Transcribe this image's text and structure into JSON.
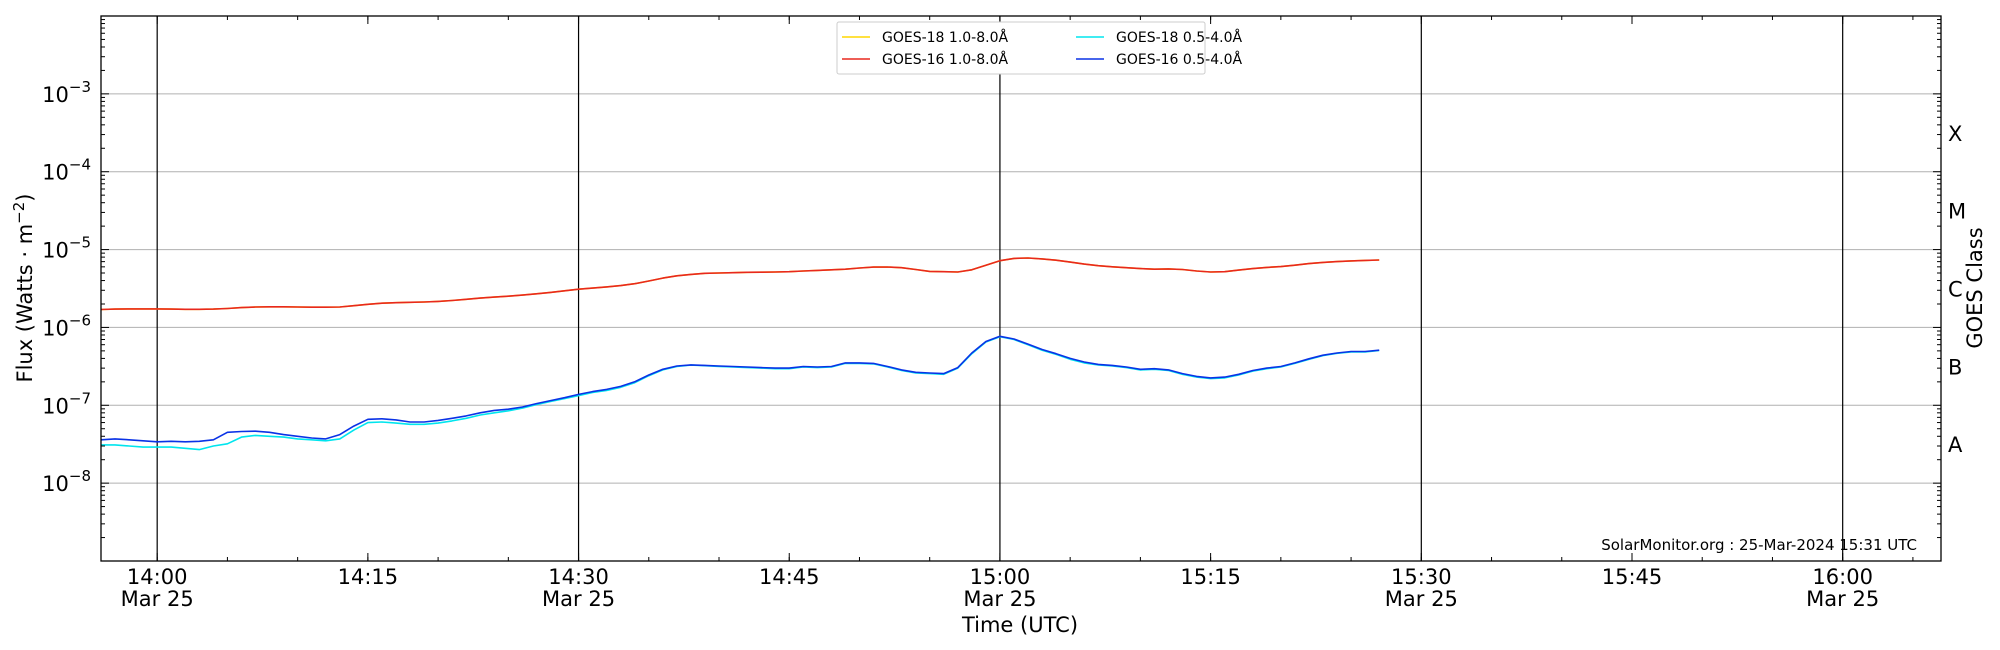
{
  "chart_data": {
    "type": "line",
    "ylabel": "Flux (Watts · m⁻²)",
    "xlabel": "Time (UTC)",
    "right_label": "GOES Class",
    "credit": "SolarMonitor.org : 25-Mar-2024 15:31 UTC",
    "yscale": "log",
    "xlim": [
      "13:56",
      "16:07"
    ],
    "ylim": [
      1e-09,
      0.01
    ],
    "grid": "horizontal",
    "y_ticks": [
      {
        "value": 1e-08,
        "mant": "10",
        "exp": "−8"
      },
      {
        "value": 1e-07,
        "mant": "10",
        "exp": "−7"
      },
      {
        "value": 1e-06,
        "mant": "10",
        "exp": "−6"
      },
      {
        "value": 1e-05,
        "mant": "10",
        "exp": "−5"
      },
      {
        "value": 0.0001,
        "mant": "10",
        "exp": "−4"
      },
      {
        "value": 0.001,
        "mant": "10",
        "exp": "−3"
      }
    ],
    "x_ticks": [
      {
        "time": "14:00",
        "label": "14:00",
        "date": "Mar 25",
        "vline": true
      },
      {
        "time": "14:15",
        "label": "14:15",
        "date": "",
        "vline": false
      },
      {
        "time": "14:30",
        "label": "14:30",
        "date": "Mar 25",
        "vline": true
      },
      {
        "time": "14:45",
        "label": "14:45",
        "date": "",
        "vline": false
      },
      {
        "time": "15:00",
        "label": "15:00",
        "date": "Mar 25",
        "vline": true
      },
      {
        "time": "15:15",
        "label": "15:15",
        "date": "",
        "vline": false
      },
      {
        "time": "15:30",
        "label": "15:30",
        "date": "Mar 25",
        "vline": true
      },
      {
        "time": "15:45",
        "label": "15:45",
        "date": "",
        "vline": false
      },
      {
        "time": "16:00",
        "label": "16:00",
        "date": "Mar 25",
        "vline": true
      }
    ],
    "goes_classes": [
      {
        "label": "A",
        "value": 3.16e-08
      },
      {
        "label": "B",
        "value": 3.16e-07
      },
      {
        "label": "C",
        "value": 3.16e-06
      },
      {
        "label": "M",
        "value": 3.16e-05
      },
      {
        "label": "X",
        "value": 0.000316
      }
    ],
    "times": [
      "13:56",
      "13:57",
      "13:58",
      "13:59",
      "14:00",
      "14:01",
      "14:02",
      "14:03",
      "14:04",
      "14:05",
      "14:06",
      "14:07",
      "14:08",
      "14:09",
      "14:10",
      "14:11",
      "14:12",
      "14:13",
      "14:14",
      "14:15",
      "14:16",
      "14:17",
      "14:18",
      "14:19",
      "14:20",
      "14:21",
      "14:22",
      "14:23",
      "14:24",
      "14:25",
      "14:26",
      "14:27",
      "14:28",
      "14:29",
      "14:30",
      "14:31",
      "14:32",
      "14:33",
      "14:34",
      "14:35",
      "14:36",
      "14:37",
      "14:38",
      "14:39",
      "14:40",
      "14:41",
      "14:42",
      "14:43",
      "14:44",
      "14:45",
      "14:46",
      "14:47",
      "14:48",
      "14:49",
      "14:50",
      "14:51",
      "14:52",
      "14:53",
      "14:54",
      "14:55",
      "14:56",
      "14:57",
      "14:58",
      "14:59",
      "15:00",
      "15:01",
      "15:02",
      "15:03",
      "15:04",
      "15:05",
      "15:06",
      "15:07",
      "15:08",
      "15:09",
      "15:10",
      "15:11",
      "15:12",
      "15:13",
      "15:14",
      "15:15",
      "15:16",
      "15:17",
      "15:18",
      "15:19",
      "15:20",
      "15:21",
      "15:22",
      "15:23",
      "15:24",
      "15:25",
      "15:26",
      "15:27"
    ],
    "series": [
      {
        "name": "GOES-18 1.0-8.0Å",
        "color": "#ffd700",
        "legend_order": 0,
        "values": [
          1.7e-06,
          1.72e-06,
          1.73e-06,
          1.73e-06,
          1.73e-06,
          1.72e-06,
          1.71e-06,
          1.71e-06,
          1.72e-06,
          1.75e-06,
          1.8e-06,
          1.83e-06,
          1.84e-06,
          1.84e-06,
          1.83e-06,
          1.82e-06,
          1.82e-06,
          1.83e-06,
          1.9e-06,
          1.98e-06,
          2.05e-06,
          2.08e-06,
          2.1e-06,
          2.12e-06,
          2.16e-06,
          2.22e-06,
          2.3e-06,
          2.38e-06,
          2.45e-06,
          2.52e-06,
          2.6e-06,
          2.7e-06,
          2.82e-06,
          2.95e-06,
          3.1e-06,
          3.2e-06,
          3.32e-06,
          3.45e-06,
          3.65e-06,
          3.95e-06,
          4.3e-06,
          4.6e-06,
          4.8e-06,
          4.95e-06,
          5e-06,
          5.05e-06,
          5.1e-06,
          5.12e-06,
          5.15e-06,
          5.2e-06,
          5.3e-06,
          5.4e-06,
          5.5e-06,
          5.6e-06,
          5.8e-06,
          5.95e-06,
          5.98e-06,
          5.85e-06,
          5.55e-06,
          5.25e-06,
          5.2e-06,
          5.15e-06,
          5.5e-06,
          6.3e-06,
          7.2e-06,
          7.7e-06,
          7.8e-06,
          7.6e-06,
          7.3e-06,
          6.9e-06,
          6.5e-06,
          6.2e-06,
          6e-06,
          5.85e-06,
          5.7e-06,
          5.6e-06,
          5.65e-06,
          5.55e-06,
          5.3e-06,
          5.15e-06,
          5.2e-06,
          5.45e-06,
          5.7e-06,
          5.9e-06,
          6.05e-06,
          6.3e-06,
          6.6e-06,
          6.85e-06,
          7e-06,
          7.15e-06,
          7.25e-06,
          7.35e-06
        ]
      },
      {
        "name": "GOES-16 1.0-8.0Å",
        "color": "#e8281e",
        "legend_order": 1,
        "values": [
          1.7e-06,
          1.72e-06,
          1.73e-06,
          1.73e-06,
          1.73e-06,
          1.72e-06,
          1.71e-06,
          1.71e-06,
          1.72e-06,
          1.75e-06,
          1.8e-06,
          1.83e-06,
          1.84e-06,
          1.84e-06,
          1.83e-06,
          1.82e-06,
          1.82e-06,
          1.83e-06,
          1.9e-06,
          1.98e-06,
          2.05e-06,
          2.08e-06,
          2.1e-06,
          2.12e-06,
          2.16e-06,
          2.22e-06,
          2.3e-06,
          2.38e-06,
          2.45e-06,
          2.52e-06,
          2.6e-06,
          2.7e-06,
          2.82e-06,
          2.95e-06,
          3.1e-06,
          3.2e-06,
          3.32e-06,
          3.45e-06,
          3.65e-06,
          3.95e-06,
          4.3e-06,
          4.6e-06,
          4.8e-06,
          4.95e-06,
          5e-06,
          5.05e-06,
          5.1e-06,
          5.12e-06,
          5.15e-06,
          5.2e-06,
          5.3e-06,
          5.4e-06,
          5.5e-06,
          5.6e-06,
          5.8e-06,
          5.95e-06,
          5.98e-06,
          5.85e-06,
          5.55e-06,
          5.25e-06,
          5.2e-06,
          5.15e-06,
          5.5e-06,
          6.3e-06,
          7.2e-06,
          7.7e-06,
          7.8e-06,
          7.6e-06,
          7.3e-06,
          6.9e-06,
          6.5e-06,
          6.2e-06,
          6e-06,
          5.85e-06,
          5.7e-06,
          5.6e-06,
          5.65e-06,
          5.55e-06,
          5.3e-06,
          5.15e-06,
          5.2e-06,
          5.45e-06,
          5.7e-06,
          5.9e-06,
          6.05e-06,
          6.3e-06,
          6.6e-06,
          6.85e-06,
          7e-06,
          7.15e-06,
          7.25e-06,
          7.35e-06
        ]
      },
      {
        "name": "GOES-18 0.5-4.0Å",
        "color": "#00e5ee",
        "legend_order": 2,
        "values": [
          3.1e-08,
          3.1e-08,
          3e-08,
          2.9e-08,
          2.9e-08,
          2.9e-08,
          2.8e-08,
          2.7e-08,
          3e-08,
          3.2e-08,
          3.9e-08,
          4.1e-08,
          4e-08,
          3.9e-08,
          3.7e-08,
          3.6e-08,
          3.5e-08,
          3.7e-08,
          4.8e-08,
          6e-08,
          6.1e-08,
          5.9e-08,
          5.7e-08,
          5.7e-08,
          5.9e-08,
          6.3e-08,
          6.8e-08,
          7.5e-08,
          8e-08,
          8.5e-08,
          9.2e-08,
          1.02e-07,
          1.12e-07,
          1.22e-07,
          1.33e-07,
          1.46e-07,
          1.55e-07,
          1.7e-07,
          1.95e-07,
          2.4e-07,
          2.85e-07,
          3.15e-07,
          3.28e-07,
          3.22e-07,
          3.15e-07,
          3.1e-07,
          3.05e-07,
          3e-07,
          2.95e-07,
          2.95e-07,
          3.1e-07,
          3.05e-07,
          3.1e-07,
          3.45e-07,
          3.45e-07,
          3.4e-07,
          3.1e-07,
          2.8e-07,
          2.6e-07,
          2.55e-07,
          2.5e-07,
          3e-07,
          4.6e-07,
          6.5e-07,
          7.6e-07,
          7e-07,
          6e-07,
          5.1e-07,
          4.5e-07,
          3.9e-07,
          3.5e-07,
          3.3e-07,
          3.2e-07,
          3.05e-07,
          2.85e-07,
          2.9e-07,
          2.8e-07,
          2.5e-07,
          2.3e-07,
          2.2e-07,
          2.25e-07,
          2.45e-07,
          2.75e-07,
          2.95e-07,
          3.1e-07,
          3.45e-07,
          3.9e-07,
          4.35e-07,
          4.65e-07,
          4.85e-07,
          4.85e-07,
          5.05e-07
        ]
      },
      {
        "name": "GOES-16 0.5-4.0Å",
        "color": "#0a32e6",
        "legend_order": 3,
        "values": [
          3.6e-08,
          3.7e-08,
          3.6e-08,
          3.5e-08,
          3.4e-08,
          3.45e-08,
          3.4e-08,
          3.45e-08,
          3.6e-08,
          4.5e-08,
          4.6e-08,
          4.65e-08,
          4.5e-08,
          4.2e-08,
          4e-08,
          3.8e-08,
          3.7e-08,
          4.2e-08,
          5.4e-08,
          6.6e-08,
          6.7e-08,
          6.5e-08,
          6.1e-08,
          6.1e-08,
          6.4e-08,
          6.8e-08,
          7.3e-08,
          8e-08,
          8.6e-08,
          8.9e-08,
          9.5e-08,
          1.05e-07,
          1.15e-07,
          1.25e-07,
          1.38e-07,
          1.5e-07,
          1.6e-07,
          1.75e-07,
          2e-07,
          2.45e-07,
          2.9e-07,
          3.2e-07,
          3.3e-07,
          3.25e-07,
          3.2e-07,
          3.15e-07,
          3.1e-07,
          3.05e-07,
          3e-07,
          3e-07,
          3.15e-07,
          3.1e-07,
          3.15e-07,
          3.5e-07,
          3.5e-07,
          3.45e-07,
          3.15e-07,
          2.85e-07,
          2.65e-07,
          2.6e-07,
          2.55e-07,
          3.05e-07,
          4.7e-07,
          6.6e-07,
          7.7e-07,
          7.1e-07,
          6.1e-07,
          5.2e-07,
          4.6e-07,
          4e-07,
          3.6e-07,
          3.35e-07,
          3.25e-07,
          3.1e-07,
          2.9e-07,
          2.95e-07,
          2.85e-07,
          2.55e-07,
          2.35e-07,
          2.25e-07,
          2.3e-07,
          2.5e-07,
          2.8e-07,
          3e-07,
          3.15e-07,
          3.5e-07,
          3.95e-07,
          4.4e-07,
          4.7e-07,
          4.9e-07,
          4.9e-07,
          5.1e-07
        ]
      }
    ],
    "legend": {
      "position": "top-center",
      "columns": 2
    },
    "colors": {
      "axis": "#000000",
      "grid": "#b0b0b0",
      "vline": "#000000"
    }
  }
}
